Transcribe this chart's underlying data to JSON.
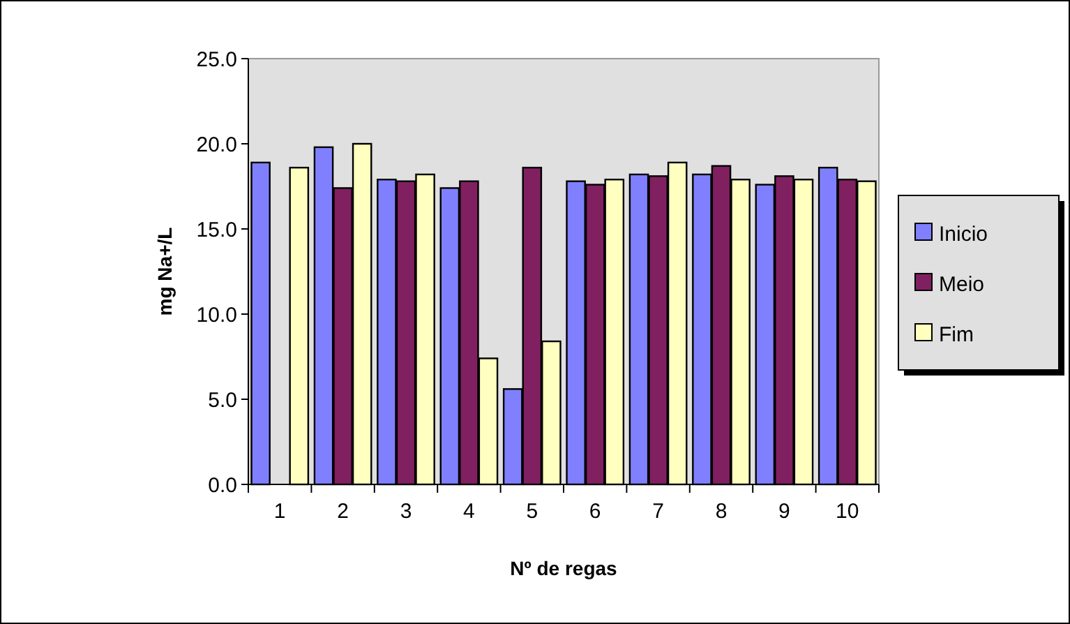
{
  "chart_data": {
    "type": "bar",
    "xlabel": "Nº de regas",
    "ylabel": "mg Na+/L",
    "categories": [
      "1",
      "2",
      "3",
      "4",
      "5",
      "6",
      "7",
      "8",
      "9",
      "10"
    ],
    "series": [
      {
        "name": "Inicio",
        "color": "#8080ff",
        "values": [
          18.9,
          19.8,
          17.9,
          17.4,
          5.6,
          17.8,
          18.2,
          18.2,
          17.6,
          18.6
        ]
      },
      {
        "name": "Meio",
        "color": "#802060",
        "values": [
          0,
          17.4,
          17.8,
          17.8,
          18.6,
          17.6,
          18.1,
          18.7,
          18.1,
          17.9
        ]
      },
      {
        "name": "Fim",
        "color": "#ffffc0",
        "values": [
          18.6,
          20.0,
          18.2,
          7.4,
          8.4,
          17.9,
          18.9,
          17.9,
          17.9,
          17.8
        ]
      }
    ],
    "ylim": [
      0,
      25
    ],
    "yticks": [
      {
        "value": 0,
        "label": "0.0"
      },
      {
        "value": 5,
        "label": "5.0"
      },
      {
        "value": 10,
        "label": "10.0"
      },
      {
        "value": 15,
        "label": "15.0"
      },
      {
        "value": 20,
        "label": "20.0"
      },
      {
        "value": 25,
        "label": "25.0"
      }
    ],
    "grid": false,
    "legend": "right"
  }
}
